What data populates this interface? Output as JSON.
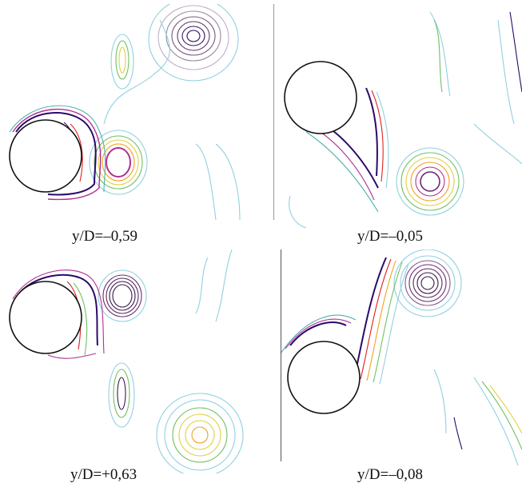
{
  "panels": [
    {
      "id": "top-left",
      "caption": "y/D=–0,59"
    },
    {
      "id": "top-right",
      "caption": "y/D=–0,05"
    },
    {
      "id": "bottom-left",
      "caption": "y/D=+0,63"
    },
    {
      "id": "bottom-right",
      "caption": "y/D=–0,08"
    }
  ],
  "colors": {
    "cylinder_outline": "#111111",
    "vortex_core": "#3a1a4a",
    "levels": [
      "#2a0a6a",
      "#6a2a7a",
      "#b03090",
      "#e02020",
      "#f0a020",
      "#e0d040",
      "#70c060",
      "#50b0b0",
      "#90d0e0"
    ]
  }
}
